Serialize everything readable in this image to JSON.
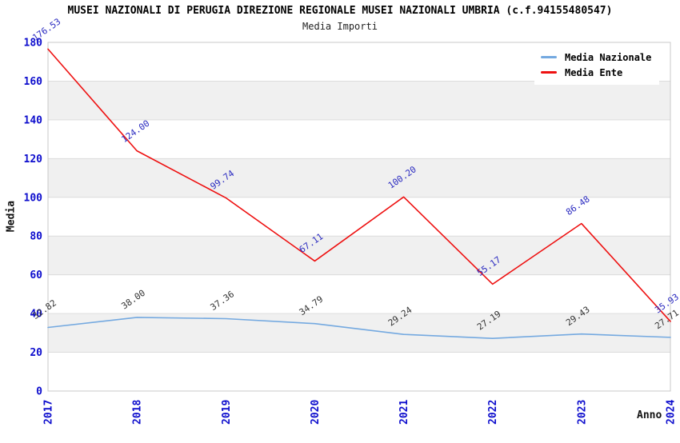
{
  "chart": {
    "title": "MUSEI NAZIONALI DI PERUGIA DIREZIONE REGIONALE MUSEI NAZIONALI UMBRIA (c.f.94155480547)",
    "subtitle": "Media Importi",
    "ylabel": "Media",
    "xlabel": "Anno"
  },
  "legend": {
    "items": [
      {
        "label": "Media Nazionale",
        "color": "#74a9e0"
      },
      {
        "label": "Media Ente",
        "color": "#ee1111"
      }
    ]
  },
  "chart_data": {
    "type": "line",
    "title": "Media Importi",
    "xlabel": "Anno",
    "ylabel": "Media",
    "categories": [
      "2017",
      "2018",
      "2019",
      "2020",
      "2021",
      "2022",
      "2023",
      "2024"
    ],
    "series": [
      {
        "name": "Media Nazionale",
        "color": "#74a9e0",
        "label_color": "#333333",
        "values": [
          32.82,
          38.0,
          37.36,
          34.79,
          29.24,
          27.19,
          29.43,
          27.71
        ]
      },
      {
        "name": "Media Ente",
        "color": "#ee1111",
        "label_color": "#2a2ac0",
        "values": [
          176.53,
          124.0,
          99.74,
          67.11,
          100.2,
          55.17,
          86.48,
          35.93
        ]
      }
    ],
    "ylim": [
      0,
      180
    ],
    "ytick_step": 20,
    "grid": true,
    "bands": true,
    "legend_position": "top-right",
    "tick_label_color": "#0d0dcd",
    "band_color": "#f0f0f0",
    "grid_color": "#dcdcdc",
    "border_color": "#c8c8c8"
  }
}
